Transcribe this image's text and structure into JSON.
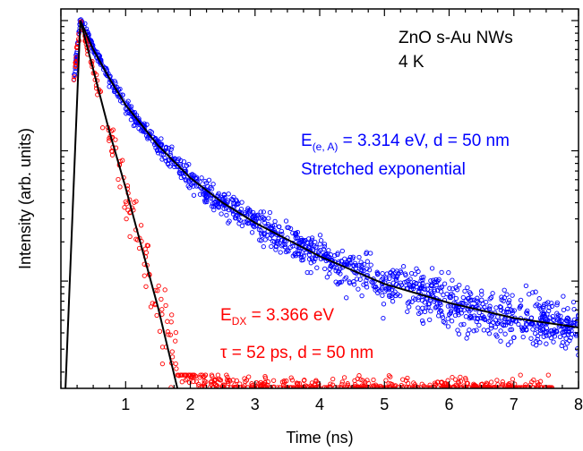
{
  "chart_data": {
    "type": "scatter",
    "y_scale": "log",
    "xlabel": "Time (ns)",
    "ylabel": "Intensity (arb. units)",
    "xlim": [
      0.0,
      8.0
    ],
    "x_ticks": [
      "1",
      "2",
      "3",
      "4",
      "5",
      "6",
      "7",
      "8"
    ],
    "grid": false,
    "sample_label": "ZnO s-Au NWs",
    "temperature_label": "4 K",
    "series": [
      {
        "key": "eA",
        "color": "#0000ff",
        "label_main": "E",
        "label_sub": "(e, A)",
        "label_rest": " = 3.314 eV, d = 50 nm",
        "fit_label": "Stretched exponential",
        "points": [
          [
            0.2,
            0.35
          ],
          [
            0.3,
            1.0
          ],
          [
            0.4,
            0.8
          ],
          [
            0.5,
            0.62
          ],
          [
            0.75,
            0.36
          ],
          [
            1.0,
            0.225
          ],
          [
            1.5,
            0.11
          ],
          [
            2.0,
            0.062
          ],
          [
            2.5,
            0.04
          ],
          [
            3.0,
            0.028
          ],
          [
            4.0,
            0.0155
          ],
          [
            5.0,
            0.0095
          ],
          [
            6.0,
            0.0068
          ],
          [
            7.0,
            0.0052
          ],
          [
            8.0,
            0.0045
          ]
        ]
      },
      {
        "key": "DX",
        "color": "#ff0000",
        "label_main": "E",
        "label_sub": "DX",
        "label_rest": " = 3.366 eV",
        "tau_label": "τ = 52 ps, d = 50 nm",
        "points": [
          [
            0.2,
            0.35
          ],
          [
            0.3,
            1.0
          ],
          [
            0.5,
            0.42
          ],
          [
            0.75,
            0.14
          ],
          [
            1.0,
            0.052
          ],
          [
            1.25,
            0.018
          ],
          [
            1.5,
            0.0065
          ],
          [
            1.75,
            0.0025
          ],
          [
            2.0,
            0.0018
          ],
          [
            3.0,
            0.0015
          ],
          [
            5.3,
            0.0015
          ],
          [
            6.4,
            0.0015
          ],
          [
            7.6,
            0.0015
          ]
        ]
      }
    ],
    "fits": [
      {
        "for": "eA",
        "color": "#000000",
        "points": [
          [
            0.3,
            1.0
          ],
          [
            0.5,
            0.6
          ],
          [
            0.75,
            0.36
          ],
          [
            1.0,
            0.225
          ],
          [
            1.5,
            0.11
          ],
          [
            2.0,
            0.062
          ],
          [
            2.5,
            0.04
          ],
          [
            3.0,
            0.028
          ],
          [
            4.0,
            0.0155
          ],
          [
            5.0,
            0.0095
          ],
          [
            6.0,
            0.0068
          ],
          [
            7.0,
            0.0052
          ],
          [
            8.0,
            0.0044
          ]
        ]
      },
      {
        "for": "DX",
        "color": "#000000",
        "points": [
          [
            0.3,
            1.0
          ],
          [
            0.5,
            0.42
          ],
          [
            0.75,
            0.14
          ],
          [
            1.0,
            0.052
          ],
          [
            1.25,
            0.018
          ],
          [
            1.5,
            0.0063
          ],
          [
            1.8,
            0.0015
          ]
        ]
      },
      {
        "for": "IRF",
        "color": "#000000",
        "points": [
          [
            0.07,
            0.0015
          ],
          [
            0.07,
            0.0015
          ],
          [
            0.3,
            1.0
          ]
        ]
      }
    ]
  }
}
